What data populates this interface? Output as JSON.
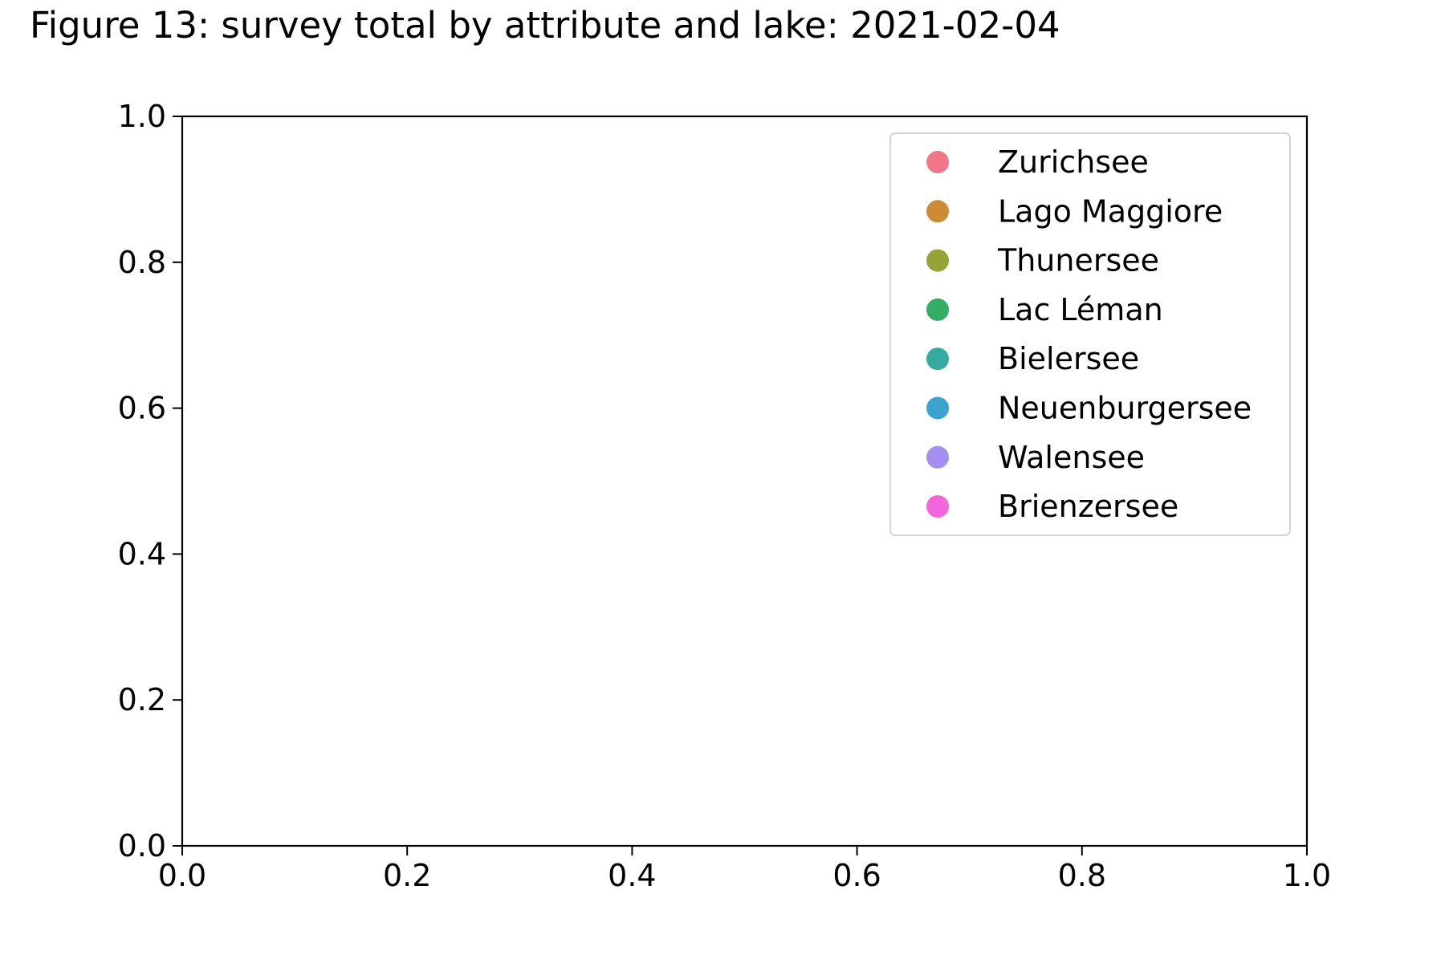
{
  "chart_data": {
    "type": "scatter",
    "title": "Figure 13: survey total by attribute and lake: 2021-02-04",
    "xlabel": "",
    "ylabel": "",
    "xlim": [
      0.0,
      1.0
    ],
    "ylim": [
      0.0,
      1.0
    ],
    "x_ticks": [
      "0.0",
      "0.2",
      "0.4",
      "0.6",
      "0.8",
      "1.0"
    ],
    "y_ticks": [
      "0.0",
      "0.2",
      "0.4",
      "0.6",
      "0.8",
      "1.0"
    ],
    "grid": false,
    "legend_position": "top-right",
    "series": [
      {
        "name": "Zurichsee",
        "color": "#f17788",
        "points": []
      },
      {
        "name": "Lago Maggiore",
        "color": "#ce8b35",
        "points": []
      },
      {
        "name": "Thunersee",
        "color": "#96a437",
        "points": []
      },
      {
        "name": "Lac Léman",
        "color": "#34ad65",
        "points": []
      },
      {
        "name": "Bielersee",
        "color": "#37aaa0",
        "points": []
      },
      {
        "name": "Neuenburgersee",
        "color": "#3ba3d0",
        "points": []
      },
      {
        "name": "Walensee",
        "color": "#a48ff0",
        "points": []
      },
      {
        "name": "Brienzersee",
        "color": "#f464dd",
        "points": []
      }
    ]
  }
}
